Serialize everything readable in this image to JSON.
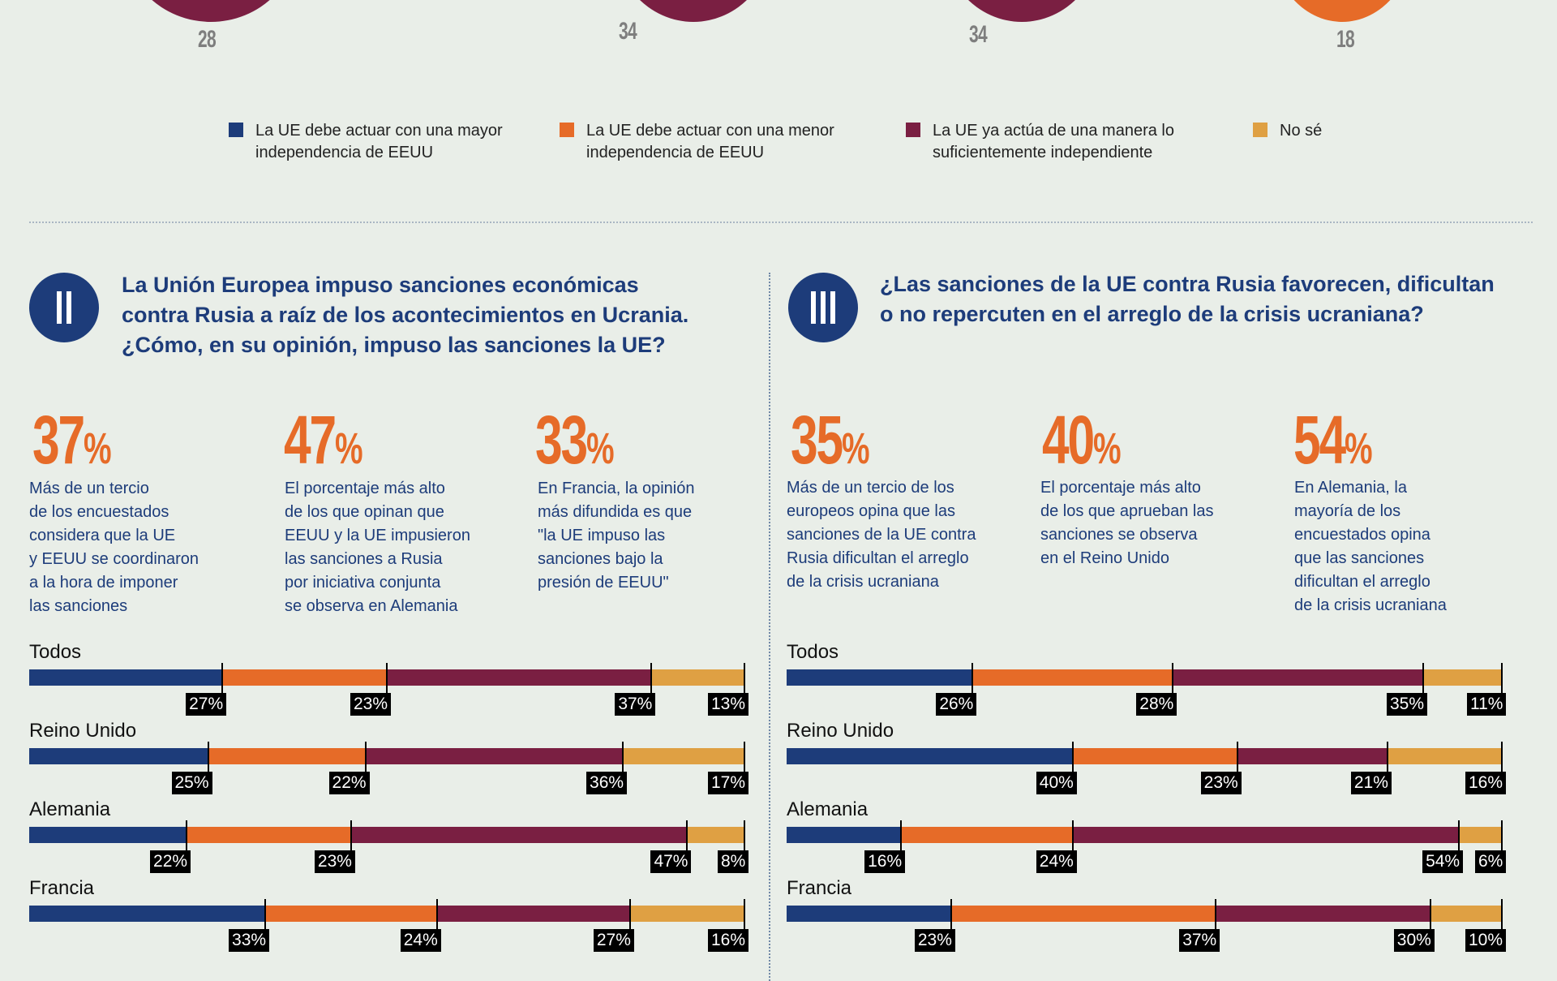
{
  "colors": {
    "background": "#e9eee8",
    "navy": "#1d3c7a",
    "orange": "#e66b28",
    "maroon": "#7a1f42",
    "gold": "#dfa043",
    "label_grey": "#7e7e7e"
  },
  "top_circles": [
    {
      "label": "28",
      "color": "#7a1f42"
    },
    {
      "label": "34",
      "color": "#7a1f42"
    },
    {
      "label": "34",
      "color": "#7a1f42"
    },
    {
      "label": "18",
      "color": "#e66b28"
    }
  ],
  "legend": [
    {
      "text": "La UE debe actuar con una mayor\nindependencia de EEUU",
      "color": "#1d3c7a"
    },
    {
      "text": "La UE debe actuar con una menor\nindependencia de EEUU",
      "color": "#e66b28"
    },
    {
      "text": "La UE ya actúa de una manera lo\nsuficientemente independiente",
      "color": "#7a1f42"
    },
    {
      "text": "No sé",
      "color": "#dfa043"
    }
  ],
  "sections": [
    {
      "badge": "II",
      "title": "La Unión Europea impuso sanciones económicas\ncontra Rusia a raíz de los acontecimientos en Ucrania.\n¿Cómo, en su opinión, impuso las sanciones la UE?",
      "stats": [
        {
          "value": "37",
          "unit": "%",
          "desc": "Más de un tercio\nde los encuestados\nconsidera que la UE\ny EEUU se coordinaron\na la hora de imponer\nlas sanciones"
        },
        {
          "value": "47",
          "unit": "%",
          "desc": "El porcentaje más alto\nde los que opinan que\nEEUU y la UE impusieron\nlas sanciones a Rusia\npor iniciativa conjunta\nse observa en Alemania"
        },
        {
          "value": "33",
          "unit": "%",
          "desc": "En Francia, la opinión\nmás difundida es que\n\"la UE impuso las\nsanciones bajo la\npresión de EEUU\""
        }
      ]
    },
    {
      "badge": "III",
      "title": "¿Las sanciones de la UE contra Rusia favorecen, dificultan\no no repercuten en el arreglo de la crisis ucraniana?",
      "stats": [
        {
          "value": "35",
          "unit": "%",
          "desc": "Más de un tercio de los\neuropeos opina que las\nsanciones de la UE contra\nRusia dificultan el arreglo\nde la crisis ucraniana"
        },
        {
          "value": "40",
          "unit": "%",
          "desc": "El porcentaje más alto\nde los que aprueban las\nsanciones se observa\nen el Reino Unido"
        },
        {
          "value": "54",
          "unit": "%",
          "desc": "En Alemania, la\nmayoría de los\nencuestados opina\nque las sanciones\ndificultan el arreglo\nde la crisis ucraniana"
        }
      ]
    }
  ],
  "chart_data": [
    {
      "type": "bar",
      "orientation": "horizontal-stacked-100",
      "title": "¿Cómo, en su opinión, impuso las sanciones la UE?",
      "categories": [
        "Todos",
        "Reino Unido",
        "Alemania",
        "Francia"
      ],
      "segment_colors": [
        "#1d3c7a",
        "#e66b28",
        "#7a1f42",
        "#dfa043"
      ],
      "rows": [
        {
          "name": "Todos",
          "values": [
            27,
            23,
            37,
            13
          ]
        },
        {
          "name": "Reino Unido",
          "values": [
            25,
            22,
            36,
            17
          ]
        },
        {
          "name": "Alemania",
          "values": [
            22,
            23,
            47,
            8
          ]
        },
        {
          "name": "Francia",
          "values": [
            33,
            24,
            27,
            16
          ]
        }
      ],
      "xlim": [
        0,
        100
      ]
    },
    {
      "type": "bar",
      "orientation": "horizontal-stacked-100",
      "title": "¿Las sanciones de la UE contra Rusia favorecen, dificultan o no repercuten en el arreglo de la crisis ucraniana?",
      "categories": [
        "Todos",
        "Reino Unido",
        "Alemania",
        "Francia"
      ],
      "segment_colors": [
        "#1d3c7a",
        "#e66b28",
        "#7a1f42",
        "#dfa043"
      ],
      "rows": [
        {
          "name": "Todos",
          "values": [
            26,
            28,
            35,
            11
          ]
        },
        {
          "name": "Reino Unido",
          "values": [
            40,
            23,
            21,
            16
          ]
        },
        {
          "name": "Alemania",
          "values": [
            16,
            24,
            54,
            6
          ]
        },
        {
          "name": "Francia",
          "values": [
            23,
            37,
            30,
            10
          ]
        }
      ],
      "xlim": [
        0,
        100
      ]
    }
  ]
}
